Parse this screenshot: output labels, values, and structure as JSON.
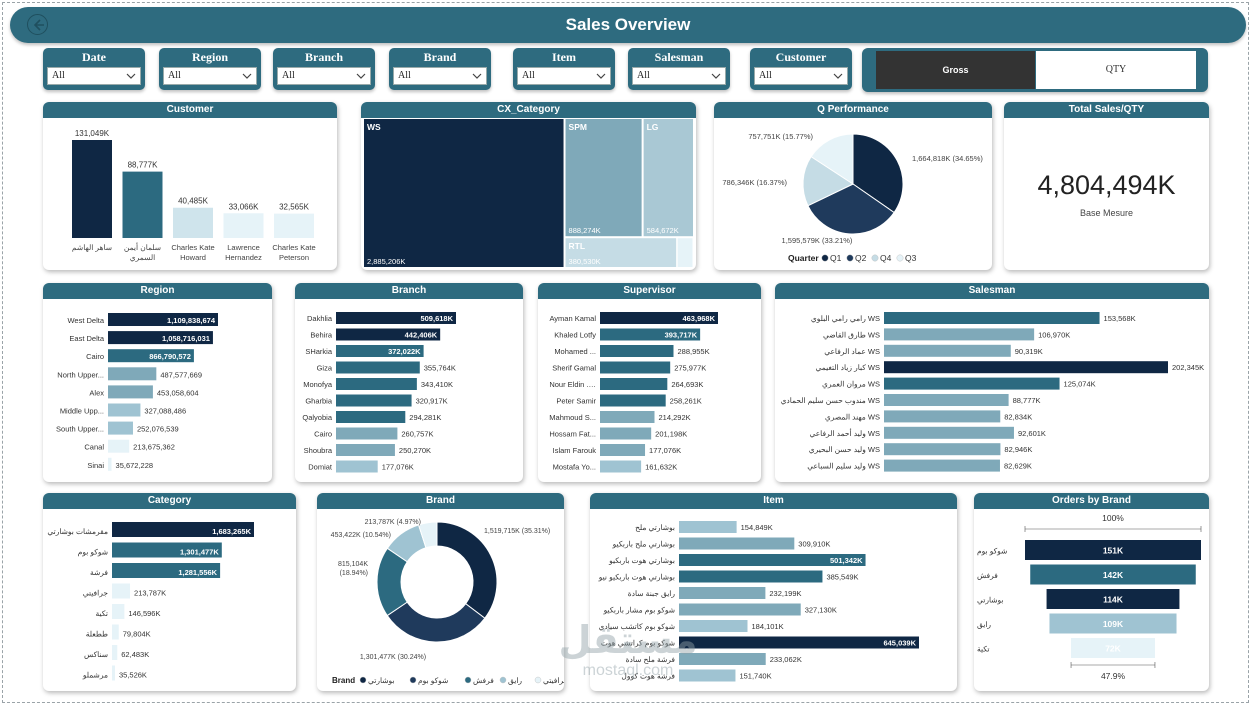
{
  "title": "Sales Overview",
  "slicers": [
    {
      "label": "Date",
      "value": "All"
    },
    {
      "label": "Region",
      "value": "All"
    },
    {
      "label": "Branch",
      "value": "All"
    },
    {
      "label": "Brand",
      "value": "All"
    },
    {
      "label": "Item",
      "value": "All"
    },
    {
      "label": "Salesman",
      "value": "All"
    },
    {
      "label": "Customer",
      "value": "All"
    }
  ],
  "measure_toggle": {
    "gross": "Gross",
    "qty": "QTY"
  },
  "kpi": {
    "title": "Total Sales/QTY",
    "value": "4,804,494K",
    "subtitle": "Base Mesure"
  },
  "colors": {
    "dark": "#0f2744",
    "mid": "#2c6a80",
    "light": "#9fc3d2",
    "pale": "#e6f3f8"
  },
  "watermark": {
    "line1": "مستقل",
    "line2": "mostaql.com"
  },
  "chart_data": [
    {
      "id": "customer",
      "type": "bar",
      "title": "Customer",
      "categories": [
        "ساهر الهاشم",
        "سلمان أيمن السمري",
        "Charles Kate Howard",
        "Lawrence Hernandez",
        "Charles Kate Peterson"
      ],
      "values": [
        131049,
        88777,
        40485,
        33066,
        32565
      ],
      "labels": [
        "131,049K",
        "88,777K",
        "40,485K",
        "33,066K",
        "32,565K"
      ],
      "colors": [
        "#0f2744",
        "#2c6a80",
        "#cfe4ec",
        "#e6f3f8",
        "#e6f3f8"
      ]
    },
    {
      "id": "cx_category",
      "type": "treemap",
      "title": "CX_Category",
      "items": [
        {
          "name": "WS",
          "value": 2885206,
          "label": "2,885,206K"
        },
        {
          "name": "SPM",
          "value": 888274,
          "label": "888,274K"
        },
        {
          "name": "LG",
          "value": 584672,
          "label": "584,672K"
        },
        {
          "name": "RTL",
          "value": 380530,
          "label": "380,530K"
        }
      ]
    },
    {
      "id": "q_performance",
      "type": "pie",
      "title": "Q Performance",
      "legend_title": "Quarter",
      "slices": [
        {
          "name": "Q1",
          "value": 1664818,
          "label": "1,664,818K (34.65%)",
          "color": "#0f2744"
        },
        {
          "name": "Q2",
          "value": 1595579,
          "label": "1,595,579K (33.21%)",
          "color": "#1f3a5c"
        },
        {
          "name": "Q4",
          "value": 786346,
          "label": "786,346K (16.37%)",
          "color": "#c5dce5"
        },
        {
          "name": "Q3",
          "value": 757751,
          "label": "757,751K (15.77%)",
          "color": "#e6f3f8"
        }
      ],
      "legend_order": [
        "Q1",
        "Q2",
        "Q4",
        "Q3"
      ]
    },
    {
      "id": "region",
      "type": "hbar",
      "title": "Region",
      "categories": [
        "West Delta",
        "East Delta",
        "Cairo",
        "North Upper...",
        "Alex",
        "Middle Upp...",
        "South Upper...",
        "Canal",
        "Sinai"
      ],
      "values": [
        1109838674,
        1058716031,
        866790572,
        487577669,
        453058604,
        327088486,
        252076539,
        213675362,
        35672228
      ],
      "labels": [
        "1,109,838,674",
        "1,058,716,031",
        "866,790,572",
        "487,577,669",
        "453,058,604",
        "327,088,486",
        "252,076,539",
        "213,675,362",
        "35,672,228"
      ]
    },
    {
      "id": "branch",
      "type": "hbar",
      "title": "Branch",
      "categories": [
        "Dakhlia",
        "Behira",
        "SHarkia",
        "Giza",
        "Monofya",
        "Gharbia",
        "Qalyobia",
        "Cairo",
        "Shoubra",
        "Domiat"
      ],
      "values": [
        509618,
        442406,
        372022,
        355764,
        343410,
        320917,
        294281,
        260757,
        250270,
        177076
      ],
      "labels": [
        "509,618K",
        "442,406K",
        "372,022K",
        "355,764K",
        "343,410K",
        "320,917K",
        "294,281K",
        "260,757K",
        "250,270K",
        "177,076K"
      ]
    },
    {
      "id": "supervisor",
      "type": "hbar",
      "title": "Supervisor",
      "categories": [
        "Ayman Kamal",
        "Khaled Lotfy",
        "Mohamed ...",
        "Sherif Gamal",
        "Nour Eldin ...",
        "Peter Samir",
        "Mahmoud S...",
        "Hossam Fat...",
        "Islam Farouk",
        "Mostafa Yo..."
      ],
      "values": [
        463968,
        393717,
        288955,
        275977,
        264693,
        258261,
        214292,
        201198,
        177076,
        161632
      ],
      "labels": [
        "463,968K",
        "393,717K",
        "288,955K",
        "275,977K",
        "264,693K",
        "258,261K",
        "214,292K",
        "201,198K",
        "177,076K",
        "161,632K"
      ]
    },
    {
      "id": "salesman",
      "type": "hbar",
      "title": "Salesman",
      "categories": [
        "رامي رامي البلوي WS",
        "طارق القاضي WS",
        "عماد الرفاعي WS",
        "كبار زياد التغيمي WS",
        "مروان العمري WS",
        "مندوب حسن سليم الحمادي WS",
        "مهند المصري WS",
        "وليد أحمد الرفاعي WS",
        "وليد حسن البحيري WS",
        "وليد سليم السباعي WS"
      ],
      "values": [
        153568,
        106970,
        90319,
        202345,
        125074,
        88777,
        82834,
        92601,
        82946,
        82629
      ],
      "labels": [
        "153,568K",
        "106,970K",
        "90,319K",
        "202,345K",
        "125,074K",
        "88,777K",
        "82,834K",
        "92,601K",
        "82,946K",
        "82,629K"
      ]
    },
    {
      "id": "category",
      "type": "hbar",
      "title": "Category",
      "categories": [
        "مقرمشات بوشارتي",
        "شوكو بوم",
        "فرشة",
        "جرافيتي",
        "تكية",
        "ططعلة",
        "سناكس",
        "مرشملو"
      ],
      "values": [
        1683265,
        1301477,
        1281556,
        213787,
        146596,
        79804,
        62483,
        35526
      ],
      "labels": [
        "1,683,265K",
        "1,301,477K",
        "1,281,556K",
        "213,787K",
        "146,596K",
        "79,804K",
        "62,483K",
        "35,526K"
      ]
    },
    {
      "id": "brand",
      "type": "donut",
      "title": "Brand",
      "legend_title": "Brand",
      "slices": [
        {
          "name": "بوشارتي",
          "value": 1519715,
          "label": "1,519,715K (35.31%)",
          "color": "#0f2744"
        },
        {
          "name": "شوكو بوم",
          "value": 1301477,
          "label": "1,301,477K (30.24%)",
          "color": "#1f3a5c"
        },
        {
          "name": "فرفش",
          "value": 815104,
          "label": "815,104K (18.94%)",
          "color": "#2c6a80"
        },
        {
          "name": "رايق",
          "value": 453422,
          "label": "453,422K (10.54%)",
          "color": "#9fc3d2"
        },
        {
          "name": "جرافيتي",
          "value": 213787,
          "label": "213,787K (4.97%)",
          "color": "#e6f3f8"
        }
      ]
    },
    {
      "id": "item",
      "type": "hbar",
      "title": "Item",
      "categories": [
        "بوشارتي ملح",
        "بوشارتي ملح باربكيو",
        "بوشارتي هوت باربكيو",
        "بوشارتي هوت باربكيو نيو",
        "رايق جبنة سادة",
        "شوكو بوم مشار باربكيو",
        "شوكو بوم كاتشب سيادي",
        "شوكو بوم كراتشي هوت",
        "فرشة ملح سادة",
        "فرشة هوت كوول"
      ],
      "values": [
        154849,
        309910,
        501342,
        385549,
        232199,
        327130,
        184101,
        645039,
        233062,
        151740
      ],
      "labels": [
        "154,849K",
        "309,910K",
        "501,342K",
        "385,549K",
        "232,199K",
        "327,130K",
        "184,101K",
        "645,039K",
        "233,062K",
        "151,740K"
      ]
    },
    {
      "id": "orders_by_brand",
      "type": "funnel",
      "title": "Orders by Brand",
      "top_label": "100%",
      "bottom_label": "47.9%",
      "categories": [
        "شوكو بوم",
        "فرفش",
        "بوشارتي",
        "رايق",
        "تكية"
      ],
      "values": [
        151,
        142,
        114,
        109,
        72
      ],
      "labels": [
        "151K",
        "142K",
        "114K",
        "109K",
        "72K"
      ]
    }
  ]
}
